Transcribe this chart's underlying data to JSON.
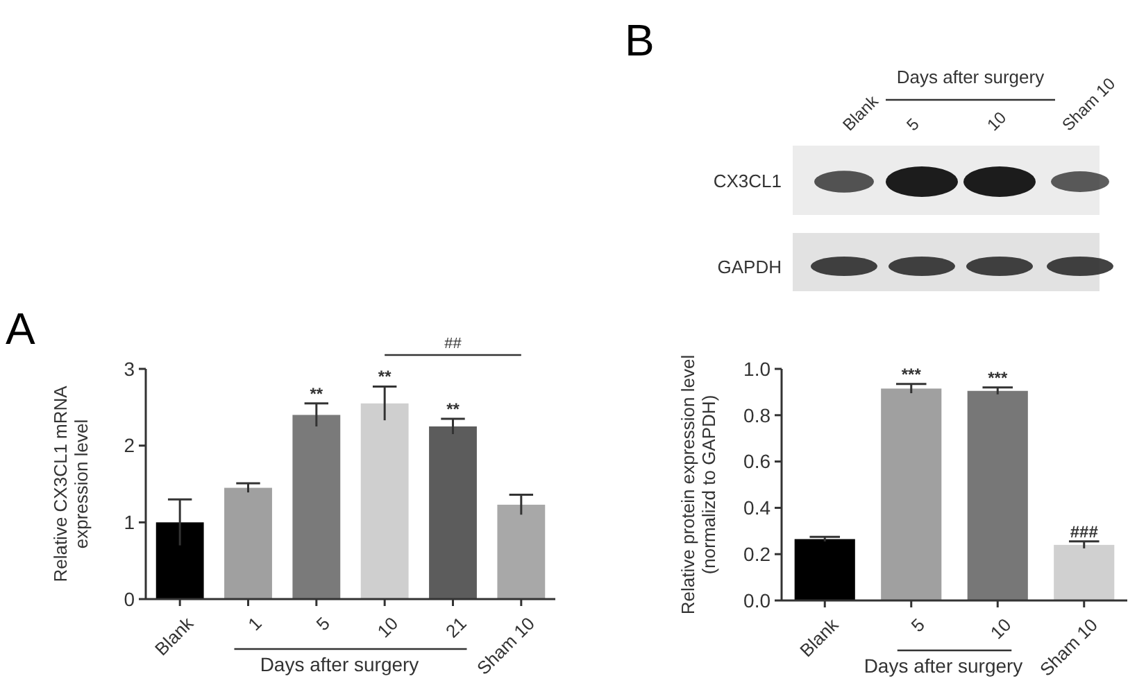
{
  "chart_data": [
    {
      "type": "bar",
      "title": "A",
      "ylabel": "Relative CX3CL1 mRNA\nexpression level",
      "categories": [
        "Blank",
        "1",
        "5",
        "10",
        "21",
        "Sham 10"
      ],
      "values": [
        1.0,
        1.45,
        2.4,
        2.55,
        2.25,
        1.23
      ],
      "colors": [
        "#000000",
        "#a0a0a0",
        "#7a7a7a",
        "#cfcfcf",
        "#5c5c5c",
        "#a8a8a8"
      ],
      "errors": [
        0.3,
        0.06,
        0.15,
        0.22,
        0.1,
        0.13
      ],
      "ylim": [
        0,
        3
      ],
      "yticks": [
        0,
        1,
        2,
        3
      ],
      "annotations": [
        "Days after surgery",
        "##",
        {
          "text": "**",
          "x": "5",
          "y": 2.55
        },
        {
          "text": "**",
          "x": "10",
          "y": 2.77
        },
        {
          "text": "**",
          "x": "21",
          "y": 2.35
        }
      ]
    },
    {
      "type": "other",
      "title": "B",
      "annotations": [
        "Blank",
        "Days after surgery",
        "5",
        "10",
        "Sham 10",
        "CX3CL1",
        "GAPDH"
      ]
    },
    {
      "type": "bar",
      "ylabel": "Relative protein expression level\n(normalizd to GAPDH)",
      "categories": [
        "Blank",
        "5",
        "10",
        "Sham 10"
      ],
      "values": [
        0.265,
        0.915,
        0.905,
        0.24
      ],
      "colors": [
        "#000000",
        "#a0a0a0",
        "#777777",
        "#d0d0d0"
      ],
      "errors": [
        0.01,
        0.02,
        0.015,
        0.015
      ],
      "ylim": [
        0,
        1.0
      ],
      "yticks": [
        {
          "value": 0,
          "label": "0.0"
        },
        0.2,
        0.4,
        0.6,
        0.8,
        {
          "value": 1,
          "label": "1.0"
        }
      ],
      "annotations": [
        "Days after surgery",
        {
          "text": "***",
          "x": "5",
          "y": 0.935
        },
        {
          "text": "***",
          "x": "10",
          "y": 0.92
        },
        {
          "text": "###",
          "x": "Sham 10",
          "y": 0.255
        }
      ]
    }
  ]
}
